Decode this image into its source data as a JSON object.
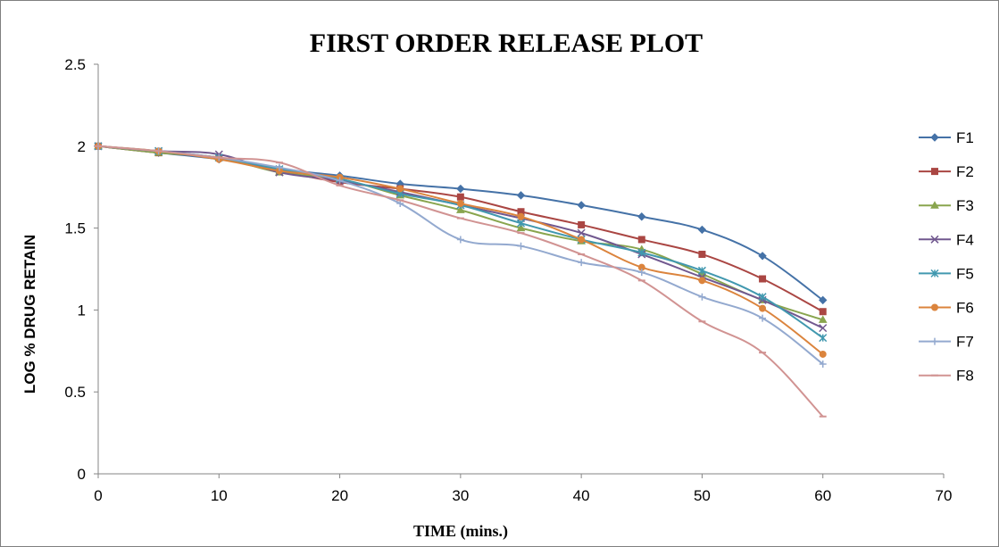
{
  "chart_data": {
    "type": "line",
    "title": "FIRST ORDER RELEASE PLOT",
    "xlabel": "TIME (mins.)",
    "ylabel": "LOG % DRUG RETAIN",
    "xlim": [
      0,
      70
    ],
    "ylim": [
      0,
      2.5
    ],
    "x_ticks": [
      "0",
      "10",
      "20",
      "30",
      "40",
      "50",
      "60",
      "70"
    ],
    "y_ticks": [
      "0",
      "0.5",
      "1",
      "1.5",
      "2",
      "2.5"
    ],
    "grid": false,
    "legend_position": "right",
    "x": [
      0,
      5,
      10,
      15,
      20,
      25,
      30,
      35,
      40,
      45,
      50,
      55,
      60
    ],
    "series": [
      {
        "name": "F1",
        "color": "#4572A7",
        "marker": "diamond",
        "values": [
          2.0,
          1.96,
          1.92,
          1.86,
          1.82,
          1.77,
          1.74,
          1.7,
          1.64,
          1.57,
          1.49,
          1.33,
          1.06
        ]
      },
      {
        "name": "F2",
        "color": "#AA4643",
        "marker": "square",
        "values": [
          2.0,
          1.96,
          1.93,
          1.85,
          1.78,
          1.74,
          1.69,
          1.6,
          1.52,
          1.43,
          1.34,
          1.19,
          0.99
        ]
      },
      {
        "name": "F3",
        "color": "#89A54E",
        "marker": "triangle",
        "values": [
          2.0,
          1.96,
          1.93,
          1.84,
          1.8,
          1.7,
          1.61,
          1.5,
          1.42,
          1.37,
          1.22,
          1.06,
          0.94
        ]
      },
      {
        "name": "F4",
        "color": "#71588F",
        "marker": "x",
        "values": [
          2.0,
          1.97,
          1.95,
          1.84,
          1.79,
          1.72,
          1.64,
          1.56,
          1.47,
          1.34,
          1.2,
          1.06,
          0.89
        ]
      },
      {
        "name": "F5",
        "color": "#4198AF",
        "marker": "star",
        "values": [
          2.0,
          1.97,
          1.93,
          1.86,
          1.8,
          1.71,
          1.64,
          1.53,
          1.43,
          1.35,
          1.24,
          1.08,
          0.83
        ]
      },
      {
        "name": "F6",
        "color": "#DB843D",
        "marker": "circle",
        "values": [
          2.0,
          1.97,
          1.92,
          1.85,
          1.81,
          1.74,
          1.65,
          1.57,
          1.43,
          1.26,
          1.18,
          1.01,
          0.73
        ]
      },
      {
        "name": "F7",
        "color": "#93A9CF",
        "marker": "plus",
        "values": [
          2.0,
          1.97,
          1.93,
          1.87,
          1.79,
          1.65,
          1.43,
          1.39,
          1.29,
          1.23,
          1.08,
          0.95,
          0.67
        ]
      },
      {
        "name": "F8",
        "color": "#D19392",
        "marker": "dash",
        "values": [
          2.0,
          1.97,
          1.93,
          1.9,
          1.76,
          1.67,
          1.56,
          1.47,
          1.34,
          1.18,
          0.93,
          0.74,
          0.35
        ]
      }
    ]
  }
}
